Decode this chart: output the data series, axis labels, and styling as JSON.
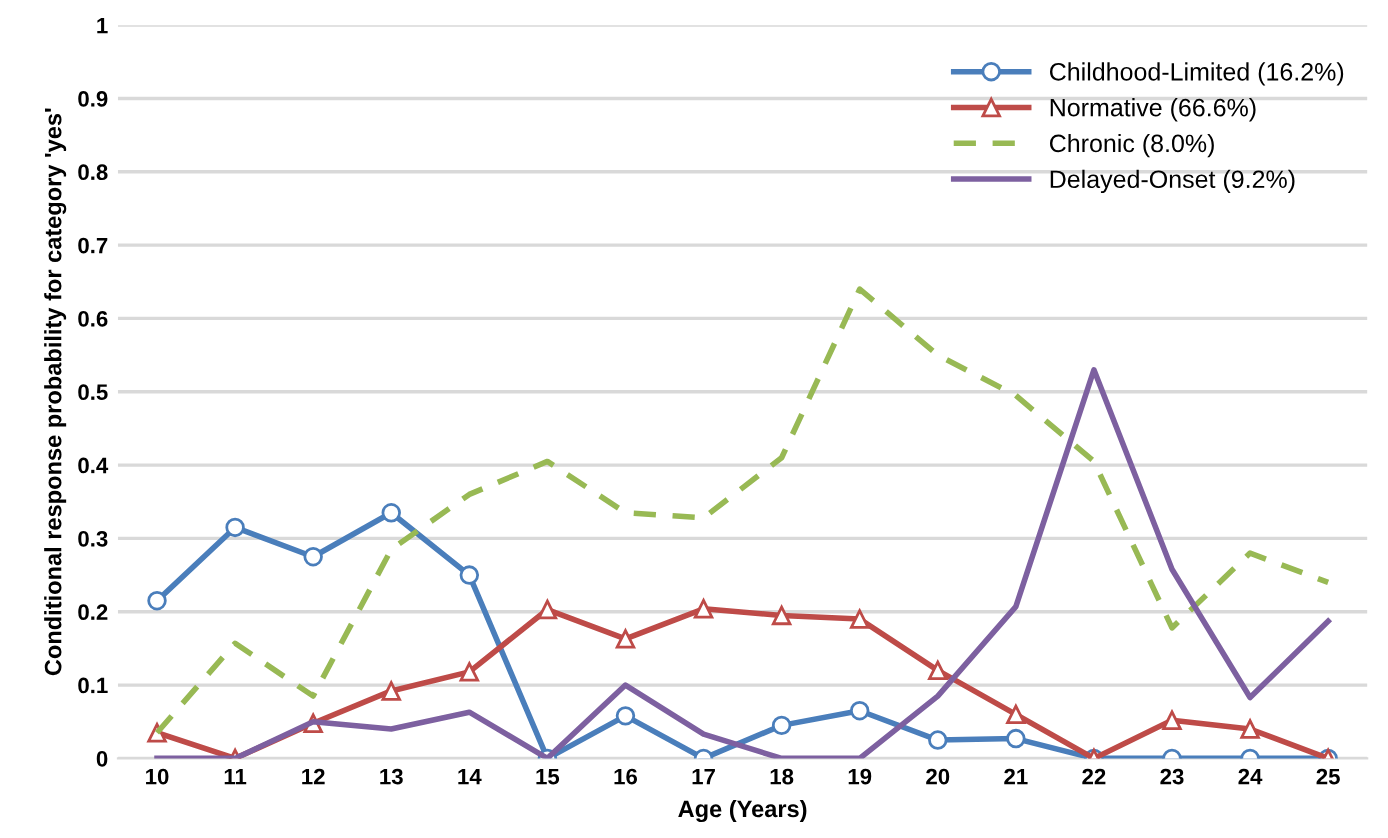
{
  "chart_data": {
    "type": "line",
    "xlabel": "Age (Years)",
    "ylabel": "Conditional response probability for category 'yes'",
    "categories": [
      "10",
      "11",
      "12",
      "13",
      "14",
      "15",
      "16",
      "17",
      "18",
      "19",
      "20",
      "21",
      "22",
      "23",
      "24",
      "25"
    ],
    "series": [
      {
        "name": "Childhood-Limited (16.2%)",
        "color": "#4a7ebb",
        "marker": "circle",
        "line_style": "solid",
        "values": [
          0.215,
          0.315,
          0.275,
          0.335,
          0.25,
          0,
          0.058,
          0,
          0.045,
          0.065,
          0.025,
          0.027,
          0,
          0,
          0,
          0
        ]
      },
      {
        "name": "Normative (66.6%)",
        "color": "#be4b48",
        "marker": "triangle",
        "line_style": "solid",
        "values": [
          0.035,
          0,
          0.048,
          0.092,
          0.118,
          0.203,
          0.163,
          0.204,
          0.195,
          0.19,
          0.12,
          0.06,
          0,
          0.052,
          0.04,
          0
        ]
      },
      {
        "name": "Chronic (8.0%)",
        "color": "#98b954",
        "marker": "none",
        "line_style": "dashed",
        "values": [
          0.035,
          0.157,
          0.085,
          0.285,
          0.36,
          0.405,
          0.335,
          0.328,
          0.41,
          0.64,
          0.55,
          0.495,
          0.405,
          0.178,
          0.28,
          0.24
        ]
      },
      {
        "name": "Delayed-Onset (9.2%)",
        "color": "#7d60a0",
        "marker": "none",
        "line_style": "solid",
        "values": [
          0,
          0,
          0.05,
          0.04,
          0.063,
          0,
          0.1,
          0.033,
          0,
          0,
          0.085,
          0.207,
          0.53,
          0.258,
          0.083,
          0.187
        ]
      }
    ],
    "ylim": [
      0,
      1
    ],
    "yticks": [
      0,
      0.1,
      0.2,
      0.3,
      0.4,
      0.5,
      0.6,
      0.7,
      0.8,
      0.9,
      1
    ],
    "grid": "y",
    "legend": "top right"
  }
}
